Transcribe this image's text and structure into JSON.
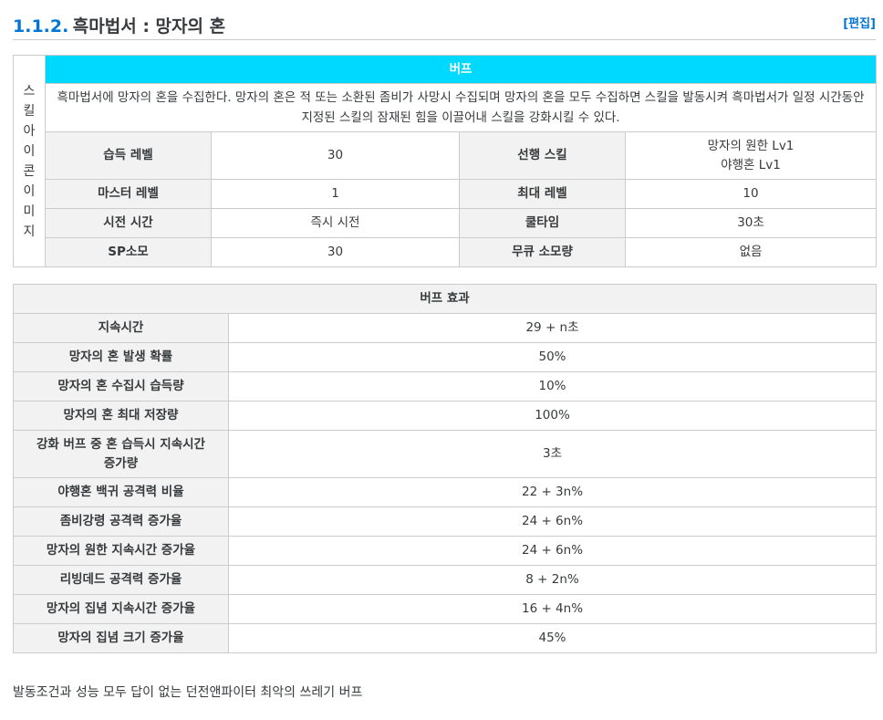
{
  "section": {
    "number": "1.1.2.",
    "title": "흑마법서 : 망자의 혼",
    "edit": "[편집]"
  },
  "skill": {
    "icon_alt": "스킬 아이콘 이미지",
    "buff_header": "버프",
    "description": "흑마법서에 망자의 혼을 수집한다. 망자의 혼은 적 또는 소환된 좀비가 사망시 수집되며 망자의 혼을 모두 수집하면 스킬을 발동시켜 흑마법서가 일정 시간동안 지정된 스킬의 잠재된 힘을 이끌어내 스킬을 강화시킬 수 있다.",
    "rows": [
      {
        "l1": "습득 레벨",
        "v1": "30",
        "l2": "선행 스킬",
        "v2a": "망자의 원한 Lv1",
        "v2b": "야행혼 Lv1"
      },
      {
        "l1": "마스터 레벨",
        "v1": "1",
        "l2": "최대 레벨",
        "v2": "10"
      },
      {
        "l1": "시전 시간",
        "v1": "즉시 시전",
        "l2": "쿨타임",
        "v2": "30초"
      },
      {
        "l1": "SP소모",
        "v1": "30",
        "l2": "무큐 소모량",
        "v2": "없음"
      }
    ]
  },
  "effects": {
    "header": "버프 효과",
    "rows": [
      {
        "label": "지속시간",
        "value": "29 + n초"
      },
      {
        "label": "망자의 혼 발생 확률",
        "value": "50%"
      },
      {
        "label": "망자의 혼 수집시 습득량",
        "value": "10%"
      },
      {
        "label": "망자의 혼 최대 저장량",
        "value": "100%"
      },
      {
        "label_a": "강화 버프 중 혼 습득시 지속시간",
        "label_b": "증가량",
        "value": "3초"
      },
      {
        "label": "야행혼 백귀 공격력 비율",
        "value": "22 + 3n%"
      },
      {
        "label": "좀비강령 공격력 증가율",
        "value": "24 + 6n%"
      },
      {
        "label": "망자의 원한 지속시간 증가율",
        "value": "24 + 6n%"
      },
      {
        "label": "리빙데드 공격력 증가율",
        "value": "8 + 2n%"
      },
      {
        "label": "망자의 집념 지속시간 증가율",
        "value": "16 + 4n%"
      },
      {
        "label": "망자의 집념 크기 증가율",
        "value": "45%"
      }
    ]
  },
  "footer": "발동조건과 성능 모두 답이 없는 던전앤파이터 최악의 쓰레기 버프"
}
